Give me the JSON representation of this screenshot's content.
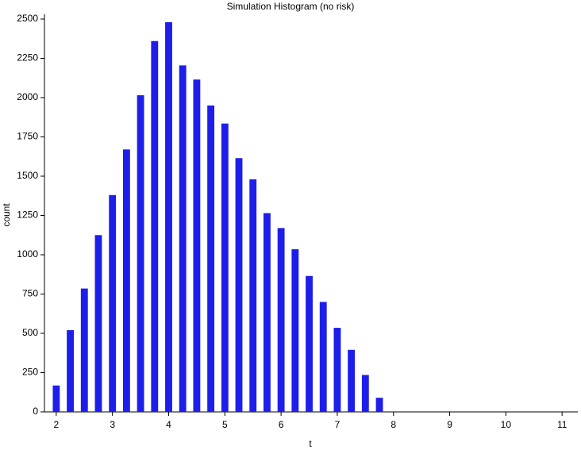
{
  "chart_data": {
    "type": "bar",
    "title": "Simulation Histogram (no risk)",
    "x_label": "t",
    "y_label": "count",
    "x": [
      2,
      2.25,
      2.5,
      2.75,
      3,
      3.25,
      3.5,
      3.75,
      4,
      4.25,
      4.5,
      4.75,
      5,
      5.25,
      5.5,
      5.75,
      6,
      6.25,
      6.5,
      6.75,
      7,
      7.25,
      7.5,
      7.75,
      8,
      8.25,
      8.5,
      8.75,
      9,
      9.25,
      9.5,
      9.75,
      10,
      10.25,
      10.5,
      10.75,
      11
    ],
    "values": [
      168,
      520,
      785,
      1125,
      1380,
      1670,
      2015,
      2360,
      2480,
      2205,
      2115,
      1950,
      1835,
      1615,
      1480,
      1265,
      1170,
      1035,
      865,
      700,
      535,
      395,
      235,
      90,
      0,
      0,
      0,
      0,
      0,
      0,
      0,
      0,
      0,
      0,
      0,
      0,
      0
    ],
    "color": "#1e1eeb",
    "xlim": [
      1.79,
      11.28
    ],
    "xticks": [
      2,
      3,
      4,
      5,
      6,
      7,
      8,
      9,
      10,
      11
    ],
    "ylim": [
      0,
      2500
    ],
    "yticks": [
      0,
      250,
      500,
      750,
      1000,
      1250,
      1500,
      1750,
      2000,
      2250,
      2500
    ],
    "grid": false
  }
}
